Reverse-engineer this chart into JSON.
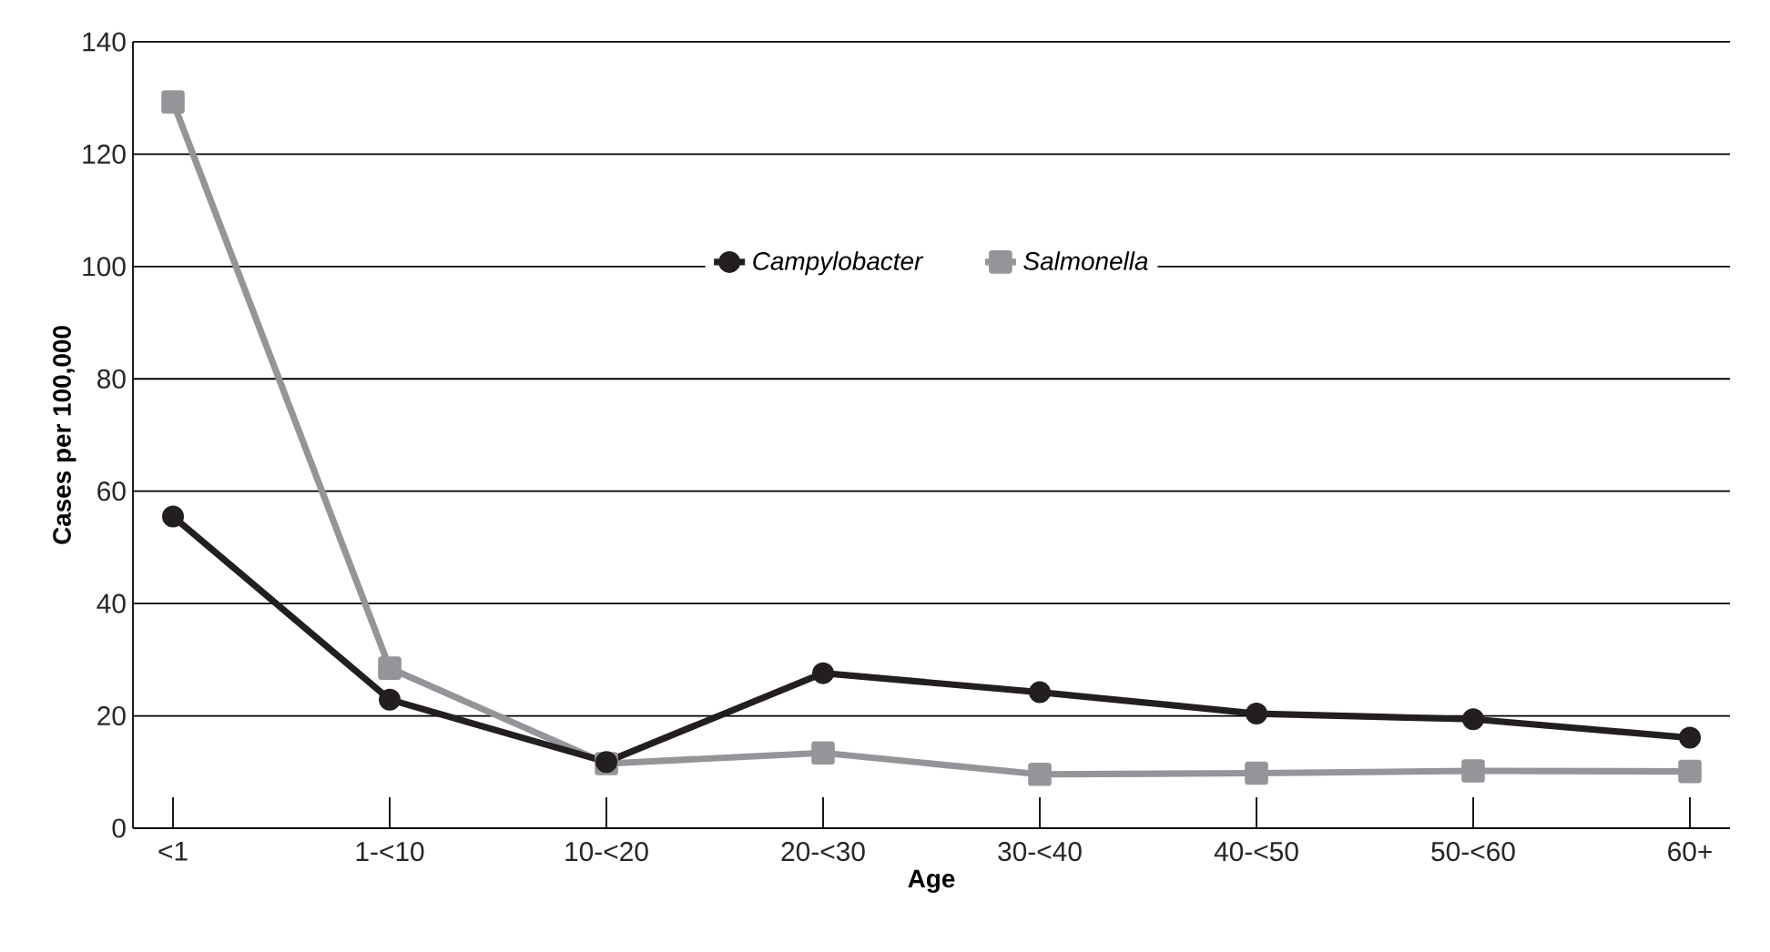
{
  "chart_data": {
    "type": "line",
    "xlabel": "Age",
    "ylabel": "Cases per 100,000",
    "categories": [
      "<1",
      "1-<10",
      "10-<20",
      "20-<30",
      "30-<40",
      "40-<50",
      "50-<60",
      "60+"
    ],
    "series": [
      {
        "name": "*Campylobacter*",
        "color": "#231f20",
        "marker": "circle",
        "values": [
          55.5,
          22.9,
          11.8,
          27.6,
          24.2,
          20.4,
          19.4,
          16.1
        ]
      },
      {
        "name": "*Salmonella*",
        "color": "#939598",
        "marker": "square",
        "values": [
          129.3,
          28.5,
          11.5,
          13.4,
          9.6,
          9.8,
          10.2,
          10.1
        ]
      }
    ],
    "ylim": [
      0,
      140
    ],
    "yticks": [
      0,
      20,
      40,
      60,
      80,
      100,
      120,
      140
    ],
    "grid": "y",
    "legend": "top",
    "line_style": "solid"
  }
}
